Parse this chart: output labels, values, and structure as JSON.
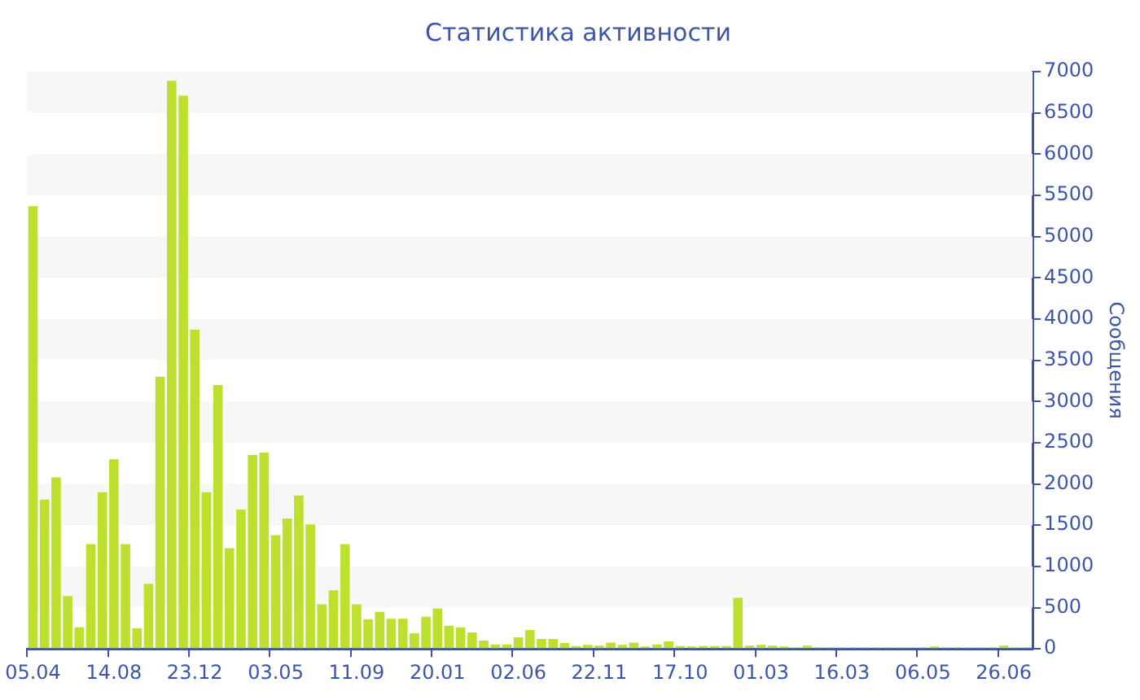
{
  "chart_data": {
    "type": "bar",
    "title": "Статистика активности",
    "ylabel": "Сообщения",
    "categories": [
      "05.04",
      null,
      null,
      null,
      null,
      null,
      null,
      "14.08",
      null,
      null,
      null,
      null,
      null,
      null,
      "23.12",
      null,
      null,
      null,
      null,
      null,
      null,
      "03.05",
      null,
      null,
      null,
      null,
      null,
      null,
      "11.09",
      null,
      null,
      null,
      null,
      null,
      null,
      "20.01",
      null,
      null,
      null,
      null,
      null,
      null,
      "02.06",
      null,
      null,
      null,
      null,
      null,
      null,
      "22.11",
      null,
      null,
      null,
      null,
      null,
      null,
      "17.10",
      null,
      null,
      null,
      null,
      null,
      null,
      "01.03",
      null,
      null,
      null,
      null,
      null,
      null,
      "16.03",
      null,
      null,
      null,
      null,
      null,
      null,
      "06.05",
      null,
      null,
      null,
      null,
      null,
      null,
      "26.06",
      null,
      null
    ],
    "values": [
      5370,
      1810,
      2080,
      640,
      260,
      1270,
      1900,
      2300,
      1270,
      250,
      790,
      3300,
      6890,
      6710,
      3870,
      1900,
      3200,
      1220,
      1690,
      2350,
      2380,
      1380,
      1580,
      1860,
      1510,
      540,
      710,
      1270,
      540,
      360,
      450,
      365,
      365,
      190,
      390,
      490,
      280,
      260,
      200,
      100,
      55,
      55,
      140,
      230,
      120,
      120,
      70,
      35,
      50,
      40,
      75,
      50,
      75,
      30,
      55,
      90,
      35,
      30,
      35,
      35,
      35,
      620,
      40,
      50,
      40,
      30,
      20,
      40,
      20,
      20,
      20,
      20,
      20,
      20,
      20,
      20,
      20,
      20,
      30,
      20,
      20,
      20,
      20,
      20,
      40,
      20,
      20
    ],
    "color": "#bde02e",
    "ylim": [
      0,
      7000
    ],
    "yticks": [
      0,
      500,
      1000,
      1500,
      2000,
      2500,
      3000,
      3500,
      4000,
      4500,
      5000,
      5500,
      6000,
      6500,
      7000
    ],
    "bands": [
      {
        "axis": "y",
        "from": 500,
        "to": 1000,
        "color": "#f7f7f7"
      },
      {
        "axis": "y",
        "from": 1500,
        "to": 2000,
        "color": "#f7f7f7"
      },
      {
        "axis": "y",
        "from": 2500,
        "to": 3000,
        "color": "#f7f7f7"
      },
      {
        "axis": "y",
        "from": 3500,
        "to": 4000,
        "color": "#f7f7f7"
      },
      {
        "axis": "y",
        "from": 4500,
        "to": 5000,
        "color": "#f7f7f7"
      },
      {
        "axis": "y",
        "from": 5500,
        "to": 6000,
        "color": "#f7f7f7"
      },
      {
        "axis": "y",
        "from": 6500,
        "to": 7000,
        "color": "#f7f7f7"
      }
    ]
  }
}
